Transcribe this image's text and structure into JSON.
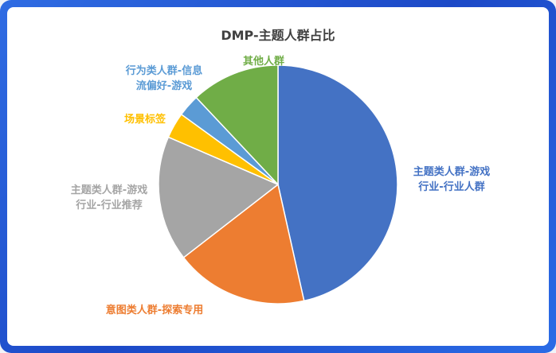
{
  "chart_data": {
    "type": "pie",
    "title": "DMP-主题人群占比",
    "slices": [
      {
        "label": [
          "主题类人群-游戏",
          "行业-行业人群"
        ],
        "value": 46.5,
        "color": "#4472c4"
      },
      {
        "label": [
          "意图类人群-探索专用"
        ],
        "value": 18.0,
        "color": "#ed7d31"
      },
      {
        "label": [
          "主题类人群-游戏",
          "行业-行业推荐"
        ],
        "value": 17.0,
        "color": "#a5a5a5"
      },
      {
        "label": [
          "场景标签"
        ],
        "value": 3.5,
        "color": "#ffc000"
      },
      {
        "label": [
          "行为类人群-信息",
          "流偏好-游戏"
        ],
        "value": 3.0,
        "color": "#5b9bd5"
      },
      {
        "label": [
          "其他人群"
        ],
        "value": 12.0,
        "color": "#70ad47"
      }
    ]
  }
}
